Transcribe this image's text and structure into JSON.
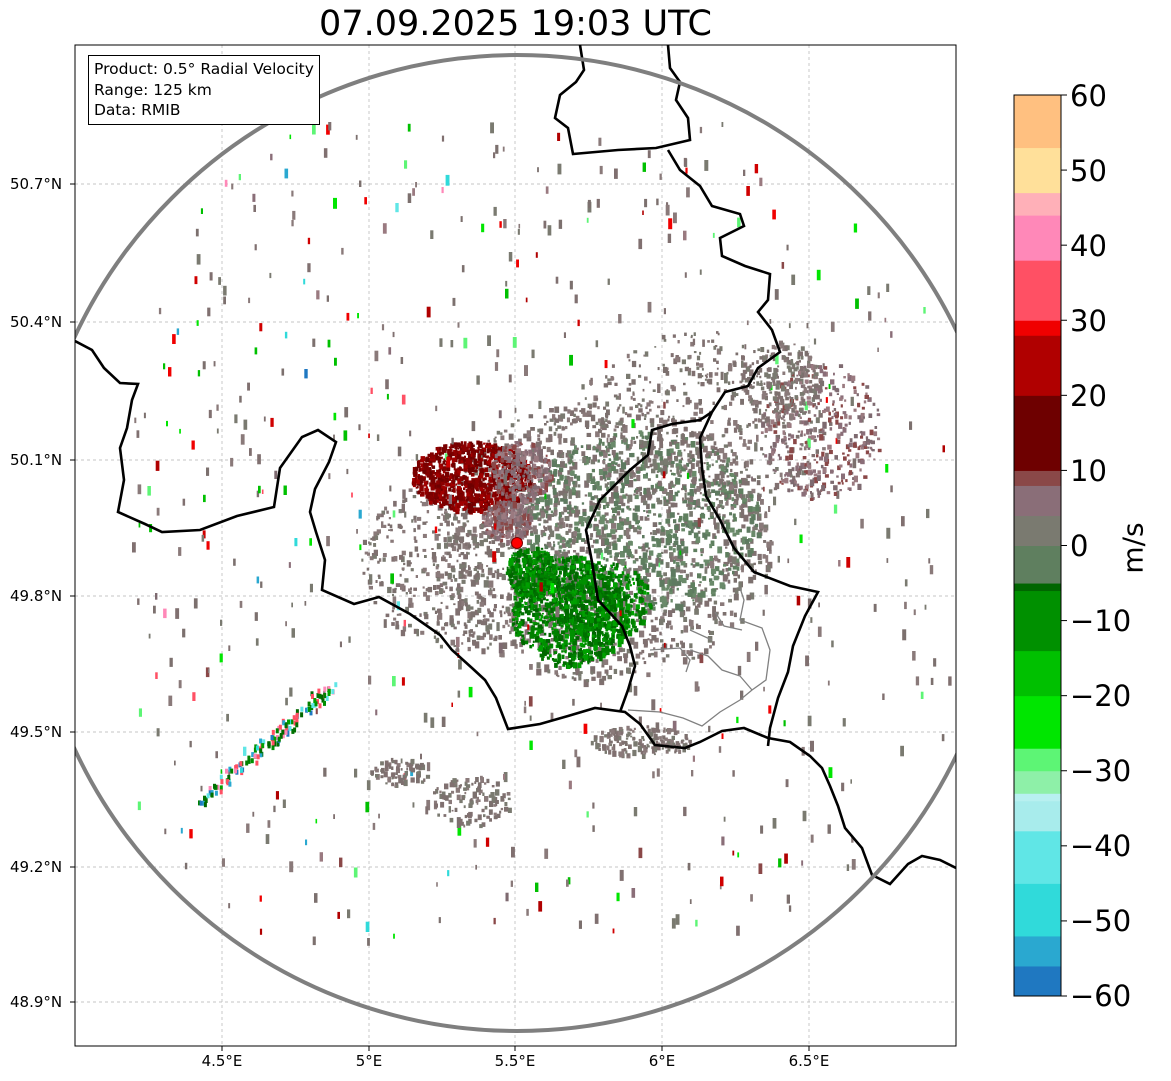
{
  "title": "07.09.2025 19:03 UTC",
  "info_box": {
    "product": "Product: 0.5° Radial Velocity",
    "range": "Range: 125 km",
    "data_source": "Data: RMIB"
  },
  "map": {
    "lon_range": [
      4.0,
      7.0
    ],
    "lat_range": [
      48.8,
      51.0
    ],
    "x_ticks": [
      "4.5°E",
      "5°E",
      "5.5°E",
      "6°E",
      "6.5°E"
    ],
    "y_ticks": [
      "50.7°N",
      "50.4°N",
      "50.1°N",
      "49.8°N",
      "49.5°N",
      "49.2°N",
      "48.9°N"
    ],
    "grid": true,
    "radar_site": {
      "lon": 5.505,
      "lat": 49.914
    },
    "range_ring_km": 125
  },
  "colorbar": {
    "label": "m/s",
    "ticks": [
      "60",
      "50",
      "40",
      "30",
      "20",
      "10",
      "0",
      "−10",
      "−20",
      "−30",
      "−40",
      "−50",
      "−60"
    ],
    "min": -60,
    "max": 60,
    "stops": [
      {
        "v": -60,
        "c": "#1f78c1"
      },
      {
        "v": -56,
        "c": "#2aa8d0"
      },
      {
        "v": -52,
        "c": "#30dada"
      },
      {
        "v": -45,
        "c": "#60e6e6"
      },
      {
        "v": -38,
        "c": "#a8ecec"
      },
      {
        "v": -34,
        "c": "#b8f0f0"
      },
      {
        "v": -33,
        "c": "#8ef0a8"
      },
      {
        "v": -30,
        "c": "#5df575"
      },
      {
        "v": -27,
        "c": "#00e600"
      },
      {
        "v": -20,
        "c": "#00c000"
      },
      {
        "v": -14,
        "c": "#009000"
      },
      {
        "v": -6,
        "c": "#006600"
      },
      {
        "v": -5,
        "c": "#5f7f5f"
      },
      {
        "v": 0,
        "c": "#7a7a70"
      },
      {
        "v": 4,
        "c": "#8a6e78"
      },
      {
        "v": 8,
        "c": "#8a4848"
      },
      {
        "v": 10,
        "c": "#6e0000"
      },
      {
        "v": 20,
        "c": "#b00000"
      },
      {
        "v": 28,
        "c": "#f00000"
      },
      {
        "v": 30,
        "c": "#ff5064"
      },
      {
        "v": 38,
        "c": "#ff88b8"
      },
      {
        "v": 44,
        "c": "#ffb0b8"
      },
      {
        "v": 47,
        "c": "#ffe09a"
      },
      {
        "v": 53,
        "c": "#ffc080"
      },
      {
        "v": 60,
        "c": "#ff9a5a"
      }
    ]
  },
  "colors": {
    "frame": "#000000",
    "grid": "#b4b4b4",
    "range_ring": "#7f7f7f",
    "border": "#000000",
    "region_border": "#808080",
    "radar_marker": "#ff0000"
  }
}
